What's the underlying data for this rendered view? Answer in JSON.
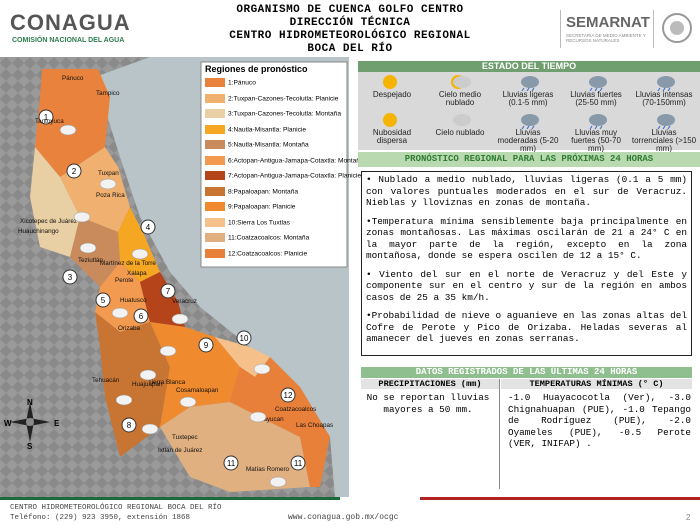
{
  "header": {
    "logo": "CONAGUA",
    "logo_subtitle": "COMISIÓN NACIONAL DEL AGUA",
    "lines": [
      "ORGANISMO DE CUENCA GOLFO CENTRO",
      "DIRECCIÓN TÉCNICA",
      "CENTRO HIDROMETEOROLÓGICO REGIONAL",
      "BOCA DEL RÍO"
    ],
    "semarnat": "SEMARNAT",
    "semarnat_subtitle": "SECRETARÍA DE MEDIO AMBIENTE Y RECURSOS NATURALES"
  },
  "map": {
    "legend_title": "Regiones de pronóstico",
    "legend": [
      {
        "label": "1:Pánuco",
        "color": "#e8823c"
      },
      {
        "label": "2:Tuxpan-Cazones-Tecolutla: Planicie",
        "color": "#f0b070"
      },
      {
        "label": "3:Tuxpan-Cazones-Tecolutla: Montaña",
        "color": "#e9cfa4"
      },
      {
        "label": "4:Nautla-Misantla: Planicie",
        "color": "#f5a623"
      },
      {
        "label": "5:Nautla-Misantla: Montaña",
        "color": "#c98a5c"
      },
      {
        "label": "6:Actopan-Antigua-Jamapa-Cotaxtla: Montaña",
        "color": "#f29a50"
      },
      {
        "label": "7:Actopan-Antigua-Jamapa-Cotaxtla: Planicie",
        "color": "#b5441a"
      },
      {
        "label": "8:Papaloapan: Montaña",
        "color": "#c87533"
      },
      {
        "label": "9:Papaloapan: Planicie",
        "color": "#f08a2e"
      },
      {
        "label": "10:Sierra Los Tuxtlas",
        "color": "#f5c08a"
      },
      {
        "label": "11:Coatzacoalcos: Montaña",
        "color": "#e0b080"
      },
      {
        "label": "12:Coatzacoalcos: Planicie",
        "color": "#e8803a"
      }
    ],
    "markers": [
      "1",
      "2",
      "3",
      "4",
      "5",
      "6",
      "7",
      "8",
      "9",
      "10",
      "11",
      "11",
      "12"
    ],
    "cities": [
      "Pánuco",
      "Tampico",
      "Tantoyuca",
      "Tuxpan",
      "Poza Rica",
      "Xicotepec de Juárez",
      "Huauchinango",
      "Martínez de la Torre",
      "Teziutlán",
      "Xalapa",
      "Perote",
      "Veracruz",
      "Huatusco",
      "Orizaba",
      "Tehuacán",
      "Tierra Blanca",
      "Cosamaloapan",
      "Huajuapan",
      "Tuxtepec",
      "Acayucan",
      "Coatzacoalcos",
      "Las Choapas",
      "Ixtlán de Juárez",
      "Matías Romero"
    ],
    "compass": [
      "N",
      "W",
      "E",
      "S"
    ]
  },
  "weather_legend": {
    "title": "ESTADO DEL TIEMPO",
    "items": [
      "Despejado",
      "Cielo medio nublado",
      "Lluvias ligeras (0.1-5 mm)",
      "Lluvias fuertes (25-50 mm)",
      "Lluvias intensas (70-150mm)",
      "Nubosidad dispersa",
      "Cielo nublado",
      "Lluvias moderadas (5-20 mm)",
      "Lluvias muy fuertes (50-70 mm)",
      "Lluvias torrenciales (>150 mm)"
    ]
  },
  "forecast": {
    "title": "PRONÓSTICO REGIONAL PARA LAS PRÓXIMAS 24 HORAS",
    "bullets": [
      "• Nublado a medio nublado, lluvias ligeras (0.1 a 5 mm) con valores puntuales moderados en el sur de Veracruz. Nieblas y lloviznas en zonas de montaña.",
      "•Temperatura mínima sensiblemente baja principalmente en zonas montañosas. Las máximas oscilarán de 21 a 24° C en la mayor parte de la región, excepto en la zona montañosa, donde se espera oscilen de 12 a 15° C.",
      "• Viento del sur en el norte de Veracruz y del Este y componente sur en el centro y sur de la región en ambos casos de 25 a 35 km/h.",
      "•Probabilidad de nieve o aguanieve en las zonas altas del Cofre de Perote y Pico de Orizaba. Heladas severas al amanecer del jueves en zonas serranas."
    ]
  },
  "records": {
    "title": "DATOS REGISTRADOS DE LAS ÚLTIMAS 24 HORAS",
    "precipitation": {
      "header": "PRECIPITACIONES (mm)",
      "text": "No se reportan lluvias mayores a 50 mm."
    },
    "temperature": {
      "header": "TEMPERATURAS MÍNIMAS (° C)",
      "text": "-1.0 Huayacocotla (Ver), -3.0 Chignahuapan (PUE), -1.0 Tepango de Rodríguez (PUE), -2.0 Oyameles (PUE), -0.5 Perote (VER, INIFAP) ."
    }
  },
  "footer": {
    "center": "CENTRO HIDROMETEOROLÓGICO REGIONAL BOCA DEL RÍO",
    "phone": "Teléfono: (229) 923 3950, extensión 1868",
    "url": "www.conagua.gob.mx/ocgc",
    "page": "2"
  }
}
